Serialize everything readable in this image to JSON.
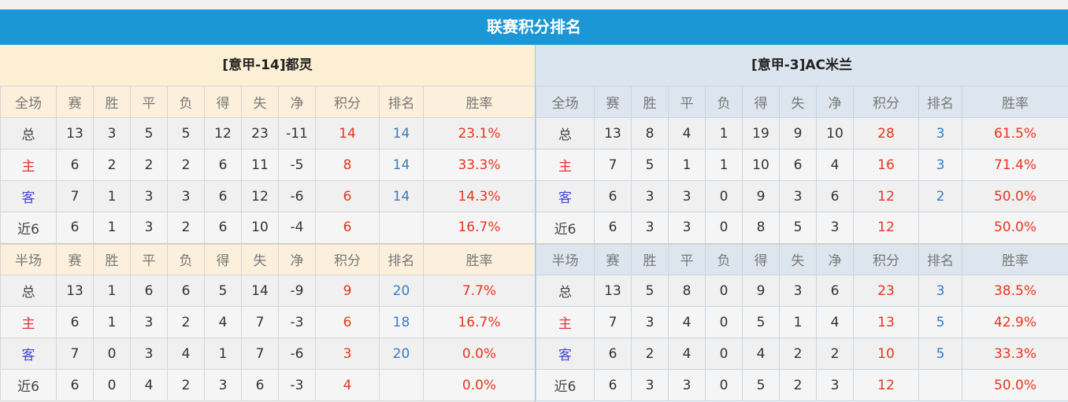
{
  "title": "联赛积分排名",
  "colors": {
    "header_bar": "#1c97d5",
    "points": "#e8351f",
    "rank": "#3a7cc2",
    "home": "#e0303a",
    "away": "#4546d8"
  },
  "columns_full": [
    "全场",
    "赛",
    "胜",
    "平",
    "负",
    "得",
    "失",
    "净",
    "积分",
    "排名",
    "胜率"
  ],
  "columns_half": [
    "半场",
    "赛",
    "胜",
    "平",
    "负",
    "得",
    "失",
    "净",
    "积分",
    "排名",
    "胜率"
  ],
  "teams": [
    {
      "name": "[意甲-14]都灵",
      "full": [
        [
          "总",
          "13",
          "3",
          "5",
          "5",
          "12",
          "23",
          "-11",
          "14",
          "14",
          "23.1%"
        ],
        [
          "主",
          "6",
          "2",
          "2",
          "2",
          "6",
          "11",
          "-5",
          "8",
          "14",
          "33.3%"
        ],
        [
          "客",
          "7",
          "1",
          "3",
          "3",
          "6",
          "12",
          "-6",
          "6",
          "14",
          "14.3%"
        ],
        [
          "近6",
          "6",
          "1",
          "3",
          "2",
          "6",
          "10",
          "-4",
          "6",
          "",
          "16.7%"
        ]
      ],
      "half": [
        [
          "总",
          "13",
          "1",
          "6",
          "6",
          "5",
          "14",
          "-9",
          "9",
          "20",
          "7.7%"
        ],
        [
          "主",
          "6",
          "1",
          "3",
          "2",
          "4",
          "7",
          "-3",
          "6",
          "18",
          "16.7%"
        ],
        [
          "客",
          "7",
          "0",
          "3",
          "4",
          "1",
          "7",
          "-6",
          "3",
          "20",
          "0.0%"
        ],
        [
          "近6",
          "6",
          "0",
          "4",
          "2",
          "3",
          "6",
          "-3",
          "4",
          "",
          "0.0%"
        ]
      ]
    },
    {
      "name": "[意甲-3]AC米兰",
      "full": [
        [
          "总",
          "13",
          "8",
          "4",
          "1",
          "19",
          "9",
          "10",
          "28",
          "3",
          "61.5%"
        ],
        [
          "主",
          "7",
          "5",
          "1",
          "1",
          "10",
          "6",
          "4",
          "16",
          "3",
          "71.4%"
        ],
        [
          "客",
          "6",
          "3",
          "3",
          "0",
          "9",
          "3",
          "6",
          "12",
          "2",
          "50.0%"
        ],
        [
          "近6",
          "6",
          "3",
          "3",
          "0",
          "8",
          "5",
          "3",
          "12",
          "",
          "50.0%"
        ]
      ],
      "half": [
        [
          "总",
          "13",
          "5",
          "8",
          "0",
          "9",
          "3",
          "6",
          "23",
          "3",
          "38.5%"
        ],
        [
          "主",
          "7",
          "3",
          "4",
          "0",
          "5",
          "1",
          "4",
          "13",
          "5",
          "42.9%"
        ],
        [
          "客",
          "6",
          "2",
          "4",
          "0",
          "4",
          "2",
          "2",
          "10",
          "5",
          "33.3%"
        ],
        [
          "近6",
          "6",
          "3",
          "3",
          "0",
          "5",
          "2",
          "3",
          "12",
          "",
          "50.0%"
        ]
      ]
    }
  ]
}
